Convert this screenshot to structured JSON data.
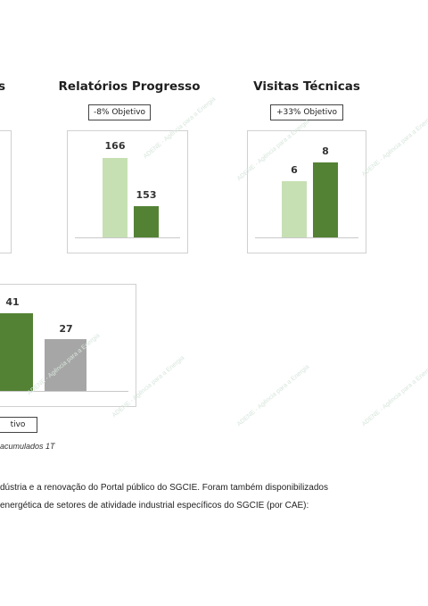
{
  "charts": {
    "left_partial": {
      "title": "s"
    },
    "relatorios": {
      "title": "Relatórios Progresso",
      "objective": "-8% Objetivo"
    },
    "visitas": {
      "title": "Visitas Técnicas",
      "objective": "+33% Objetivo"
    },
    "bottom": {
      "objective": "tivo"
    }
  },
  "chart_data": [
    {
      "type": "bar",
      "title": "Relatórios Progresso",
      "values": [
        166,
        153
      ],
      "colors": [
        "#c6e0b4",
        "#548235"
      ]
    },
    {
      "type": "bar",
      "title": "Visitas Técnicas",
      "values": [
        6,
        8
      ],
      "colors": [
        "#c6e0b4",
        "#548235"
      ]
    },
    {
      "type": "bar",
      "values": [
        41,
        27
      ],
      "colors": [
        "#548235",
        "#a6a6a6"
      ]
    }
  ],
  "watermark": "ADENE - Agência para a Energia",
  "caption": "acumulados 1T",
  "body": {
    "line1": "dústria e a renovação do Portal público do SGCIE. Foram também disponibilizados",
    "line2": "energética de setores de atividade industrial específicos do SGCIE (por CAE):"
  },
  "colors": {
    "light_green": "#c6e0b4",
    "dark_green": "#548235",
    "grey": "#a6a6a6"
  }
}
